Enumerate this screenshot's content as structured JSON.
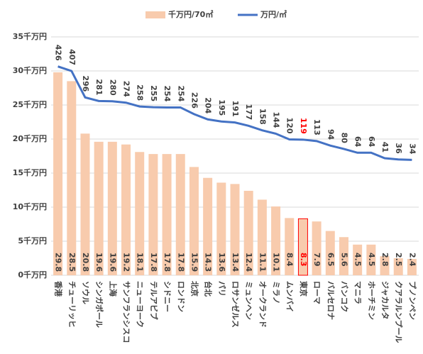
{
  "chart_data": {
    "type": "bar",
    "categories": [
      "香港",
      "チューリッヒ",
      "ソウル",
      "シンガポール",
      "上海",
      "サンフランシスコ",
      "ニューヨーク",
      "テルアビブ",
      "シドニー",
      "ロンドン",
      "北京",
      "台北",
      "パリ",
      "ロサンゼルス",
      "ミュンヘン",
      "オークランド",
      "ミラノ",
      "ムンバイ",
      "東京",
      "ローマ",
      "バルセロナ",
      "バンコク",
      "マニラ",
      "ホーチミン",
      "ジャカルタ",
      "クアラルンプール",
      "プノンペン"
    ],
    "series": [
      {
        "name": "千万円/70㎡",
        "type": "bar",
        "color": "#f8cbad",
        "values": [
          29.8,
          28.5,
          20.8,
          19.6,
          19.6,
          19.2,
          18.1,
          17.8,
          17.8,
          17.8,
          15.9,
          14.3,
          13.6,
          13.4,
          12.4,
          11.1,
          10.1,
          8.4,
          8.3,
          7.9,
          6.5,
          5.6,
          4.5,
          4.5,
          2.8,
          2.5,
          2.4
        ]
      },
      {
        "name": "万円/㎡",
        "type": "line",
        "axis": "y2",
        "color": "#4472c4",
        "values": [
          426,
          407,
          296,
          281,
          280,
          274,
          258,
          255,
          254,
          254,
          226,
          204,
          195,
          191,
          177,
          158,
          144,
          120,
          119,
          113,
          94,
          80,
          64,
          64,
          41,
          36,
          34
        ]
      }
    ],
    "highlight_category": "東京",
    "highlight_color": "#ff0000",
    "ylim": [
      0,
      35
    ],
    "yticks": [
      {
        "value": 0,
        "label": "0千万円"
      },
      {
        "value": 5,
        "label": "5千万円"
      },
      {
        "value": 10,
        "label": "10千万円"
      },
      {
        "value": 15,
        "label": "15千万円"
      },
      {
        "value": 20,
        "label": "20千万円"
      },
      {
        "value": 25,
        "label": "25千万円"
      },
      {
        "value": 30,
        "label": "30千万円"
      },
      {
        "value": 35,
        "label": "35千万円"
      }
    ],
    "y2lim": [
      -450,
      550
    ],
    "grid": true,
    "legend": "top"
  }
}
